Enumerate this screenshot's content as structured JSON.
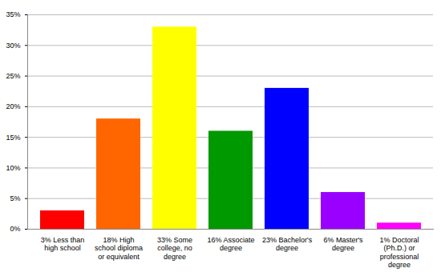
{
  "chart_data": {
    "type": "bar",
    "categories": [
      "3% Less than high school",
      "18% High school diploma or equivalent",
      "33% Some college, no degree",
      "16% Associate degree",
      "23% Bachelor's degree",
      "6% Master's degree",
      "1% Doctoral (Ph.D.) or professional degree"
    ],
    "values": [
      3,
      18,
      33,
      16,
      23,
      6,
      1
    ],
    "colors": [
      "#ff0000",
      "#ff6600",
      "#ffff00",
      "#009900",
      "#0000ff",
      "#9900ff",
      "#ff00ff"
    ],
    "ylim": [
      0,
      35
    ],
    "yticks": [
      {
        "value": 0,
        "label": "0%"
      },
      {
        "value": 5,
        "label": "5%"
      },
      {
        "value": 10,
        "label": "10%"
      },
      {
        "value": 15,
        "label": "15%"
      },
      {
        "value": 20,
        "label": "20%"
      },
      {
        "value": 25,
        "label": "25%"
      },
      {
        "value": 30,
        "label": "30%"
      },
      {
        "value": 35,
        "label": "35%"
      }
    ],
    "grid": true
  }
}
